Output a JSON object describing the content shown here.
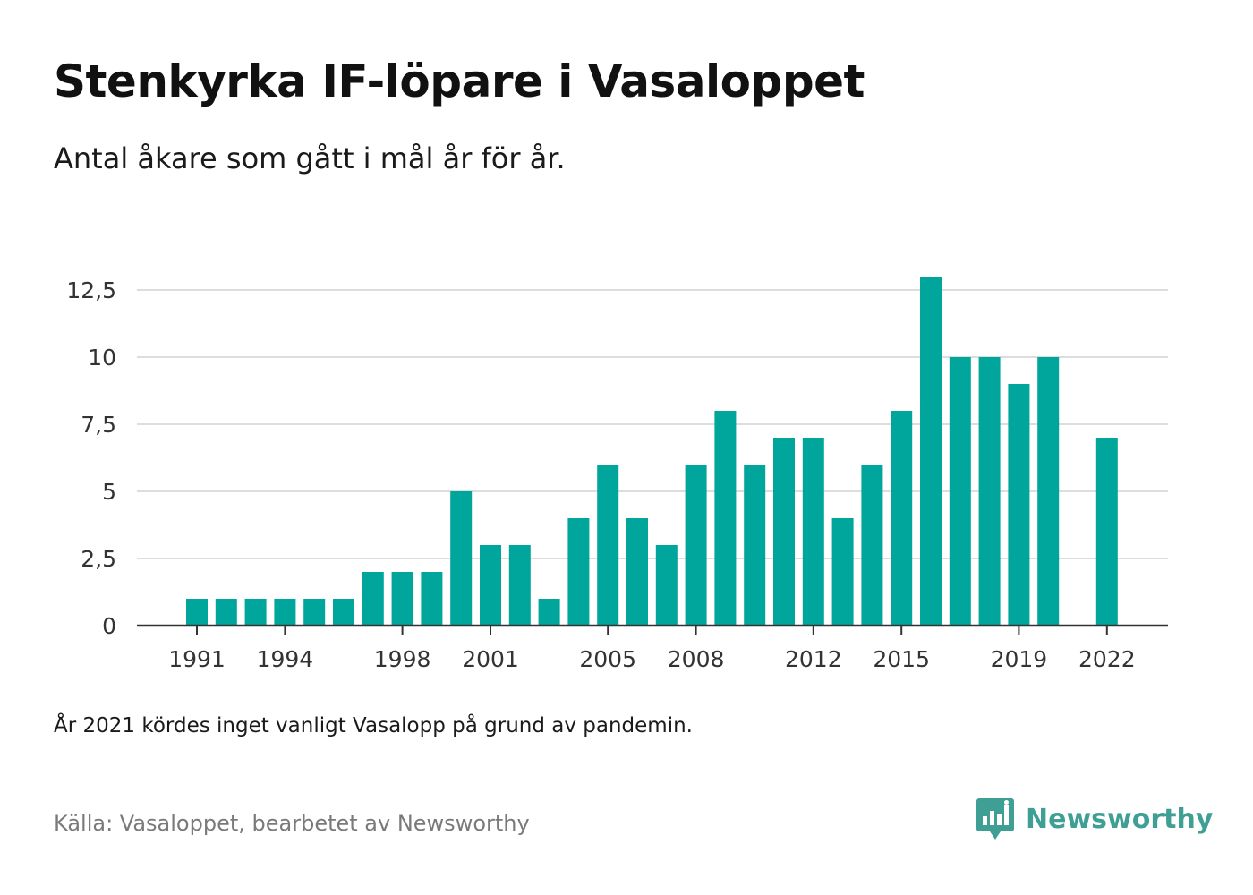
{
  "title": "Stenkyrka IF-löpare i Vasaloppet",
  "subtitle": "Antal åkare som gått i mål år för år.",
  "note": "År 2021 kördes inget vanligt Vasalopp på grund av pandemin.",
  "source": "Källa: Vasaloppet, bearbetet av Newsworthy",
  "brand": {
    "name": "Newsworthy",
    "icon": "newsworthy-logo-icon",
    "color": "#3f9f95"
  },
  "colors": {
    "bar": "#00a69b",
    "grid": "#dddddd",
    "axis": "#333333",
    "tick_text": "#333333"
  },
  "chart_data": {
    "type": "bar",
    "title": "Stenkyrka IF-löpare i Vasaloppet",
    "subtitle": "Antal åkare som gått i mål år för år.",
    "xlabel": "",
    "ylabel": "",
    "x": [
      1991,
      1992,
      1993,
      1994,
      1995,
      1996,
      1997,
      1998,
      1999,
      2000,
      2001,
      2002,
      2003,
      2004,
      2005,
      2006,
      2007,
      2008,
      2009,
      2010,
      2011,
      2012,
      2013,
      2014,
      2015,
      2016,
      2017,
      2018,
      2019,
      2020,
      2021,
      2022
    ],
    "values": [
      1,
      1,
      1,
      1,
      1,
      1,
      2,
      2,
      2,
      5,
      3,
      3,
      1,
      4,
      6,
      4,
      3,
      6,
      8,
      6,
      7,
      7,
      4,
      6,
      8,
      13,
      10,
      10,
      9,
      10,
      null,
      7
    ],
    "x_ticks": [
      1991,
      1994,
      1998,
      2001,
      2005,
      2008,
      2012,
      2015,
      2019,
      2022
    ],
    "y_ticks": [
      0,
      2.5,
      5,
      7.5,
      10,
      12.5
    ],
    "y_tick_labels": [
      "0",
      "2,5",
      "5",
      "7,5",
      "10",
      "12,5"
    ],
    "ylim": [
      0,
      13.5
    ],
    "grid": true,
    "legend": "none"
  }
}
